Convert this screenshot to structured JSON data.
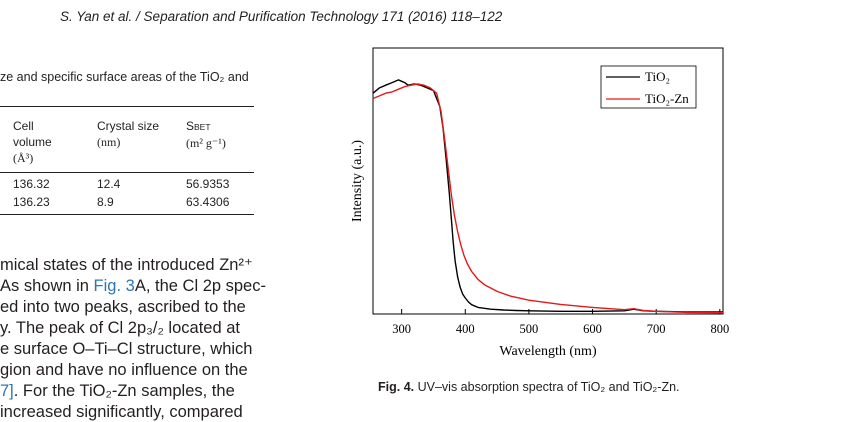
{
  "running_head": "S. Yan et al. / Separation and Purification Technology 171 (2016) 118–122",
  "table": {
    "caption": "ze and specific surface areas of the TiO₂ and",
    "headers": [
      [
        "Cell",
        "volume",
        "(Å³)"
      ],
      [
        "Crystal size",
        "(nm)"
      ],
      [
        "S",
        "BET",
        "(m² g⁻¹)"
      ]
    ],
    "rows": [
      [
        "136.32",
        "12.4",
        "56.9353"
      ],
      [
        "136.23",
        "8.9",
        "63.4306"
      ]
    ]
  },
  "body_text": [
    {
      "pre": "mical states of the introduced Zn²⁺",
      "link": "",
      "post": ""
    },
    {
      "pre": "As shown in ",
      "link": "Fig. 3",
      "post": "A, the Cl 2p spec-"
    },
    {
      "pre": "ed into two peaks, ascribed to the",
      "link": "",
      "post": ""
    },
    {
      "pre": "y. The peak of Cl 2p₃/₂ located at",
      "link": "",
      "post": ""
    },
    {
      "pre": "e surface O–Ti–Cl structure, which",
      "link": "",
      "post": ""
    },
    {
      "pre": "gion and have no influence on the",
      "link": "",
      "post": ""
    },
    {
      "pre": "",
      "link": "7]",
      "post": ". For the TiO₂-Zn samples, the"
    },
    {
      "pre": "increased significantly, compared",
      "link": "",
      "post": ""
    }
  ],
  "figure": {
    "caption_label": "Fig. 4.",
    "caption_text": "UV–vis absorption spectra of TiO₂ and TiO₂-Zn."
  },
  "chart_data": {
    "type": "line",
    "xlabel": "Wavelength (nm)",
    "ylabel": "Intensity (a.u.)",
    "xlim": [
      255,
      805
    ],
    "ylim": [
      0,
      1
    ],
    "xticks": [
      300,
      400,
      500,
      600,
      700,
      800
    ],
    "yticks_shown": false,
    "legend_position": "top-right",
    "series": [
      {
        "name": "TiO₂",
        "color": "#000000",
        "x": [
          255,
          265,
          275,
          285,
          295,
          300,
          305,
          310,
          320,
          330,
          340,
          350,
          360,
          365,
          370,
          375,
          378,
          381,
          384,
          388,
          392,
          396,
          400,
          405,
          410,
          420,
          440,
          460,
          480,
          500,
          550,
          600,
          650,
          665,
          680,
          700,
          750,
          805
        ],
        "y": [
          0.83,
          0.85,
          0.86,
          0.87,
          0.88,
          0.875,
          0.87,
          0.86,
          0.865,
          0.86,
          0.85,
          0.84,
          0.78,
          0.7,
          0.58,
          0.45,
          0.36,
          0.27,
          0.2,
          0.14,
          0.1,
          0.075,
          0.06,
          0.045,
          0.035,
          0.025,
          0.018,
          0.015,
          0.013,
          0.012,
          0.01,
          0.01,
          0.012,
          0.018,
          0.012,
          0.01,
          0.008,
          0.008
        ]
      },
      {
        "name": "TiO₂-Zn",
        "color": "#e31a1c",
        "x": [
          255,
          265,
          275,
          285,
          295,
          305,
          315,
          325,
          335,
          345,
          355,
          362,
          368,
          373,
          378,
          383,
          388,
          393,
          398,
          403,
          410,
          420,
          430,
          450,
          470,
          500,
          550,
          600,
          650,
          665,
          680,
          700,
          750,
          805
        ],
        "y": [
          0.81,
          0.82,
          0.83,
          0.835,
          0.845,
          0.855,
          0.86,
          0.865,
          0.86,
          0.85,
          0.83,
          0.76,
          0.65,
          0.55,
          0.45,
          0.37,
          0.31,
          0.26,
          0.22,
          0.19,
          0.16,
          0.13,
          0.11,
          0.085,
          0.068,
          0.052,
          0.036,
          0.025,
          0.016,
          0.02,
          0.013,
          0.01,
          0.006,
          0.005
        ]
      }
    ]
  }
}
